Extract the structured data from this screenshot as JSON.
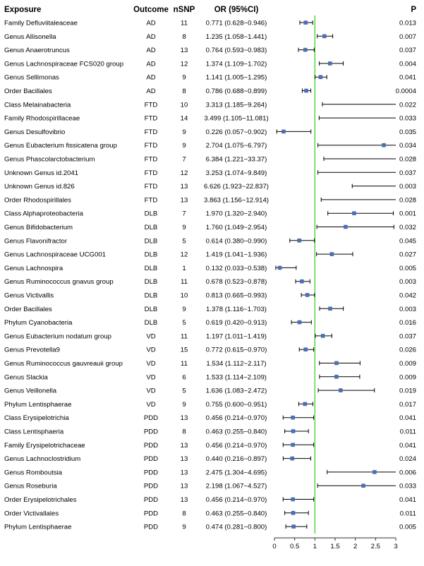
{
  "headers": {
    "exposure": "Exposure",
    "outcome": "Outcome",
    "nsnp": "nSNP",
    "or": "OR (95%CI)",
    "p": "P"
  },
  "chart_data": {
    "type": "forest",
    "title": "",
    "xlabel": "",
    "ylabel": "",
    "xlim": [
      0,
      3
    ],
    "x_ticks": [
      "0",
      "0.5",
      "1",
      "1.5",
      "2",
      "2.5",
      "3"
    ],
    "reference_line": 1,
    "colors": {
      "point": "#4a6fb5",
      "interval": "#000000",
      "reference": "#4cd137"
    },
    "rows": [
      {
        "exposure": "Family Defluviitaleaceae",
        "outcome": "AD",
        "nsnp": "11",
        "or_text": "0.771 (0.628~0.946)",
        "p": "0.013",
        "or": 0.771,
        "lo": 0.628,
        "hi": 0.946
      },
      {
        "exposure": "Genus Allisonella",
        "outcome": "AD",
        "nsnp": "8",
        "or_text": "1.235 (1.058~1.441)",
        "p": "0.007",
        "or": 1.235,
        "lo": 1.058,
        "hi": 1.441
      },
      {
        "exposure": "Genus Anaerotruncus",
        "outcome": "AD",
        "nsnp": "13",
        "or_text": "0.764 (0.593~0.983)",
        "p": "0.037",
        "or": 0.764,
        "lo": 0.593,
        "hi": 0.983
      },
      {
        "exposure": "Genus Lachnospiraceae FCS020 group",
        "outcome": "AD",
        "nsnp": "12",
        "or_text": "1.374 (1.109~1.702)",
        "p": "0.004",
        "or": 1.374,
        "lo": 1.109,
        "hi": 1.702
      },
      {
        "exposure": "Genus Sellimonas",
        "outcome": "AD",
        "nsnp": "9",
        "or_text": "1.141 (1.005~1.295)",
        "p": "0.041",
        "or": 1.141,
        "lo": 1.005,
        "hi": 1.295
      },
      {
        "exposure": "Order Bacillales",
        "outcome": "AD",
        "nsnp": "8",
        "or_text": "0.786 (0.688~0.899)",
        "p": "0.0004",
        "or": 0.786,
        "lo": 0.688,
        "hi": 0.899
      },
      {
        "exposure": "Class Melainabacteria",
        "outcome": "FTD",
        "nsnp": "10",
        "or_text": "3.313 (1.185~9.264)",
        "p": "0.022",
        "or": 3.313,
        "lo": 1.185,
        "hi": 9.264
      },
      {
        "exposure": "Family Rhodospirillaceae",
        "outcome": "FTD",
        "nsnp": "14",
        "or_text": "3.499 (1.105~11.081)",
        "p": "0.033",
        "or": 3.499,
        "lo": 1.105,
        "hi": 11.081
      },
      {
        "exposure": "Genus Desulfovibrio",
        "outcome": "FTD",
        "nsnp": "9",
        "or_text": "0.226 (0.057~0.902)",
        "p": "0.035",
        "or": 0.226,
        "lo": 0.057,
        "hi": 0.902
      },
      {
        "exposure": "Genus Eubacterium fissicatena group",
        "outcome": "FTD",
        "nsnp": "9",
        "or_text": "2.704 (1.075~6.797)",
        "p": "0.034",
        "or": 2.704,
        "lo": 1.075,
        "hi": 6.797
      },
      {
        "exposure": "Genus Phascolarctobacterium",
        "outcome": "FTD",
        "nsnp": "7",
        "or_text": "6.384 (1.221~33.37)",
        "p": "0.028",
        "or": 6.384,
        "lo": 1.221,
        "hi": 33.37
      },
      {
        "exposure": "Unknown Genus id.2041",
        "outcome": "FTD",
        "nsnp": "12",
        "or_text": "3.253 (1.074~9.849)",
        "p": "0.037",
        "or": 3.253,
        "lo": 1.074,
        "hi": 9.849
      },
      {
        "exposure": "Unknown Genus id.826",
        "outcome": "FTD",
        "nsnp": "13",
        "or_text": "6.626 (1.923~22.837)",
        "p": "0.003",
        "or": 6.626,
        "lo": 1.923,
        "hi": 22.837
      },
      {
        "exposure": "Order Rhodospirillales",
        "outcome": "FTD",
        "nsnp": "13",
        "or_text": "3.863 (1.156~12.914)",
        "p": "0.028",
        "or": 3.863,
        "lo": 1.156,
        "hi": 12.914
      },
      {
        "exposure": "Class Alphaproteobacteria",
        "outcome": "DLB",
        "nsnp": "7",
        "or_text": "1.970 (1.320~2.940)",
        "p": "0.001",
        "or": 1.97,
        "lo": 1.32,
        "hi": 2.94
      },
      {
        "exposure": "Genus Bifidobacterium",
        "outcome": "DLB",
        "nsnp": "9",
        "or_text": "1.760 (1.049~2.954)",
        "p": "0.032",
        "or": 1.76,
        "lo": 1.049,
        "hi": 2.954
      },
      {
        "exposure": "Genus Flavonifractor",
        "outcome": "DLB",
        "nsnp": "5",
        "or_text": "0.614 (0.380~0.990)",
        "p": "0.045",
        "or": 0.614,
        "lo": 0.38,
        "hi": 0.99
      },
      {
        "exposure": "Genus Lachnospiraceae UCG001",
        "outcome": "DLB",
        "nsnp": "12",
        "or_text": "1.419 (1.041~1.936)",
        "p": "0.027",
        "or": 1.419,
        "lo": 1.041,
        "hi": 1.936
      },
      {
        "exposure": "Genus Lachnospira",
        "outcome": "DLB",
        "nsnp": "1",
        "or_text": "0.132 (0.033~0.538)",
        "p": "0.005",
        "or": 0.132,
        "lo": 0.033,
        "hi": 0.538
      },
      {
        "exposure": "Genus Ruminococcus gnavus group",
        "outcome": "DLB",
        "nsnp": "11",
        "or_text": "0.678 (0.523~0.878)",
        "p": "0.003",
        "or": 0.678,
        "lo": 0.523,
        "hi": 0.878
      },
      {
        "exposure": "Genus Victivallis",
        "outcome": "DLB",
        "nsnp": "10",
        "or_text": "0.813 (0.665~0.993)",
        "p": "0.042",
        "or": 0.813,
        "lo": 0.665,
        "hi": 0.993
      },
      {
        "exposure": "Order Bacillales",
        "outcome": "DLB",
        "nsnp": "9",
        "or_text": "1.378 (1.116~1.703)",
        "p": "0.003",
        "or": 1.378,
        "lo": 1.116,
        "hi": 1.703
      },
      {
        "exposure": "Phylum Cyanobacteria",
        "outcome": "DLB",
        "nsnp": "5",
        "or_text": "0.619 (0.420~0.913)",
        "p": "0.016",
        "or": 0.619,
        "lo": 0.42,
        "hi": 0.913
      },
      {
        "exposure": "Genus Eubacterium nodatum group",
        "outcome": "VD",
        "nsnp": "11",
        "or_text": "1.197 (1.011~1.419)",
        "p": "0.037",
        "or": 1.197,
        "lo": 1.011,
        "hi": 1.419
      },
      {
        "exposure": "Genus Prevotella9",
        "outcome": "VD",
        "nsnp": "15",
        "or_text": "0.772 (0.615~0.970)",
        "p": "0.026",
        "or": 0.772,
        "lo": 0.615,
        "hi": 0.97
      },
      {
        "exposure": "Genus Ruminococcus gauvreauii group",
        "outcome": "VD",
        "nsnp": "11",
        "or_text": "1.534 (1.112~2.117)",
        "p": "0.009",
        "or": 1.534,
        "lo": 1.112,
        "hi": 2.117
      },
      {
        "exposure": "Genus Slackia",
        "outcome": "VD",
        "nsnp": "6",
        "or_text": "1.533 (1.114~2.109)",
        "p": "0.009",
        "or": 1.533,
        "lo": 1.114,
        "hi": 2.109
      },
      {
        "exposure": "Genus Veillonella",
        "outcome": "VD",
        "nsnp": "5",
        "or_text": "1.636 (1.083~2.472)",
        "p": "0.019",
        "or": 1.636,
        "lo": 1.083,
        "hi": 2.472
      },
      {
        "exposure": "Phylum Lentisphaerae",
        "outcome": "VD",
        "nsnp": "9",
        "or_text": "0.755 (0.600~0.951)",
        "p": "0.017",
        "or": 0.755,
        "lo": 0.6,
        "hi": 0.951
      },
      {
        "exposure": "Class Erysipelotrichia",
        "outcome": "PDD",
        "nsnp": "13",
        "or_text": "0.456 (0.214~0.970)",
        "p": "0.041",
        "or": 0.456,
        "lo": 0.214,
        "hi": 0.97
      },
      {
        "exposure": "Class Lentisphaeria",
        "outcome": "PDD",
        "nsnp": "8",
        "or_text": "0.463 (0.255~0.840)",
        "p": "0.011",
        "or": 0.463,
        "lo": 0.255,
        "hi": 0.84
      },
      {
        "exposure": "Family Erysipelotrichaceae",
        "outcome": "PDD",
        "nsnp": "13",
        "or_text": "0.456 (0.214~0.970)",
        "p": "0.041",
        "or": 0.456,
        "lo": 0.214,
        "hi": 0.97
      },
      {
        "exposure": "Genus Lachnoclostridium",
        "outcome": "PDD",
        "nsnp": "13",
        "or_text": "0.440 (0.216~0.897)",
        "p": "0.024",
        "or": 0.44,
        "lo": 0.216,
        "hi": 0.897
      },
      {
        "exposure": "Genus Romboutsia",
        "outcome": "PDD",
        "nsnp": "13",
        "or_text": "2.475 (1.304~4.695)",
        "p": "0.006",
        "or": 2.475,
        "lo": 1.304,
        "hi": 4.695
      },
      {
        "exposure": "Genus Roseburia",
        "outcome": "PDD",
        "nsnp": "13",
        "or_text": "2.198 (1.067~4.527)",
        "p": "0.033",
        "or": 2.198,
        "lo": 1.067,
        "hi": 4.527
      },
      {
        "exposure": "Order Erysipelotrichales",
        "outcome": "PDD",
        "nsnp": "13",
        "or_text": "0.456 (0.214~0.970)",
        "p": "0.041",
        "or": 0.456,
        "lo": 0.214,
        "hi": 0.97
      },
      {
        "exposure": "Order Victivallales",
        "outcome": "PDD",
        "nsnp": "8",
        "or_text": "0.463 (0.255~0.840)",
        "p": "0.011",
        "or": 0.463,
        "lo": 0.255,
        "hi": 0.84
      },
      {
        "exposure": "Phylum Lentisphaerae",
        "outcome": "PDD",
        "nsnp": "9",
        "or_text": "0.474 (0.281~0.800)",
        "p": "0.005",
        "or": 0.474,
        "lo": 0.281,
        "hi": 0.8
      }
    ]
  }
}
